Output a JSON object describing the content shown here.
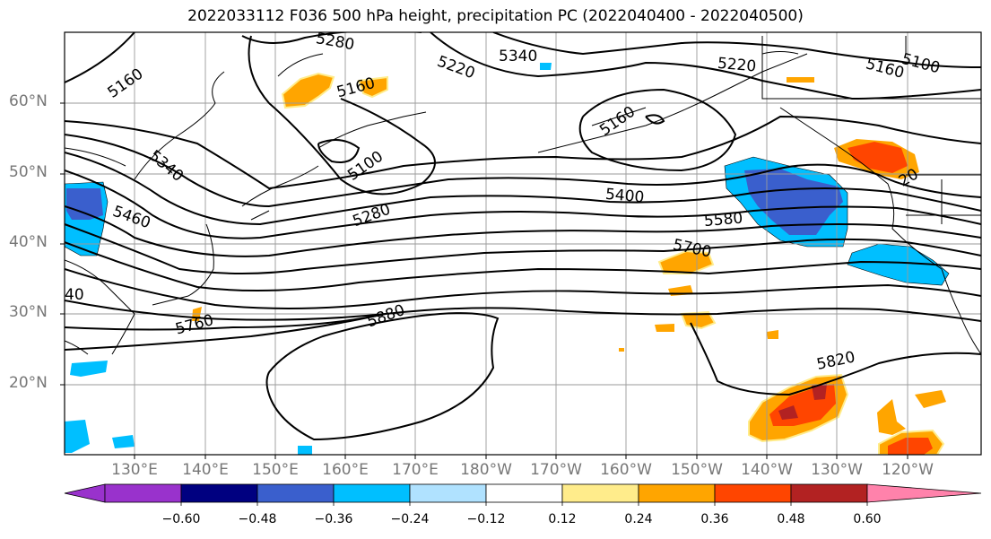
{
  "title": "2022033112 F036 500 hPa height, precipitation PC (2022040400 - 2022040500)",
  "lat_labels": [
    "60°N",
    "50°N",
    "40°N",
    "30°N",
    "20°N"
  ],
  "lon_labels": [
    "130°E",
    "140°E",
    "150°E",
    "160°E",
    "170°E",
    "180°W",
    "170°W",
    "160°W",
    "150°W",
    "140°W",
    "130°W",
    "120°W"
  ],
  "contour_labels": [
    "5160",
    "5280",
    "5340",
    "5220",
    "5160",
    "5220",
    "5160",
    "5100",
    "5100",
    "5160",
    "5340",
    "5460",
    "5280",
    "5400",
    "5580",
    "5700",
    "20",
    "40",
    "5760",
    "5880",
    "5820"
  ],
  "colorbar": {
    "ticks": [
      "−0.60",
      "−0.48",
      "−0.36",
      "−0.24",
      "−0.12",
      "0.12",
      "0.24",
      "0.36",
      "0.48",
      "0.60"
    ],
    "colors": [
      "#9932cc",
      "#000080",
      "#3a5fcd",
      "#00bfff",
      "#b0e2ff",
      "#ffffff",
      "#ffec8b",
      "#ffa500",
      "#ff4500",
      "#b22222",
      "#ff82ab"
    ]
  }
}
